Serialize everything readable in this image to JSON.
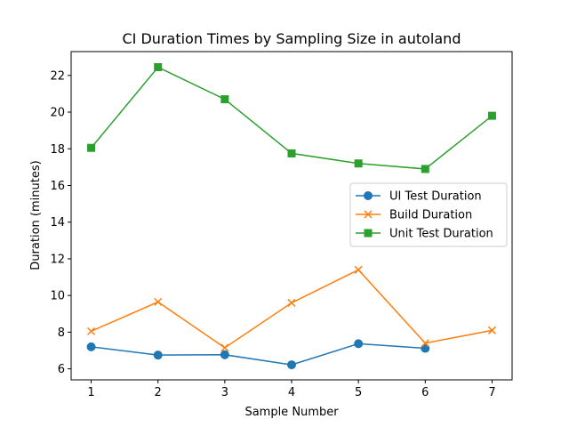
{
  "chart_data": {
    "type": "line",
    "title": "CI Duration Times by Sampling Size in autoland",
    "xlabel": "Sample Number",
    "ylabel": "Duration (minutes)",
    "x": [
      1,
      2,
      3,
      4,
      5,
      6,
      7
    ],
    "xticks": [
      "1",
      "2",
      "3",
      "4",
      "5",
      "6",
      "7"
    ],
    "yticks": [
      "6",
      "8",
      "10",
      "12",
      "14",
      "16",
      "18",
      "20",
      "22"
    ],
    "xlim": [
      0.7,
      7.3
    ],
    "ylim": [
      5.4,
      23.3
    ],
    "grid": false,
    "legend_position": "center-right",
    "series": [
      {
        "name": "UI Test Duration",
        "color": "#1f77b4",
        "marker": "circle",
        "x": [
          1,
          2,
          3,
          4,
          5,
          6
        ],
        "values": [
          7.2,
          6.75,
          6.77,
          6.22,
          7.37,
          7.12
        ]
      },
      {
        "name": "Build Duration",
        "color": "#ff7f0e",
        "marker": "x",
        "x": [
          1,
          2,
          3,
          4,
          5,
          6,
          7
        ],
        "values": [
          8.05,
          9.65,
          7.15,
          9.6,
          11.4,
          7.4,
          8.1
        ]
      },
      {
        "name": "Unit Test Duration",
        "color": "#2ca02c",
        "marker": "square",
        "x": [
          1,
          2,
          3,
          4,
          5,
          6,
          7
        ],
        "values": [
          18.05,
          22.45,
          20.7,
          17.75,
          17.2,
          16.9,
          19.8
        ]
      }
    ]
  }
}
